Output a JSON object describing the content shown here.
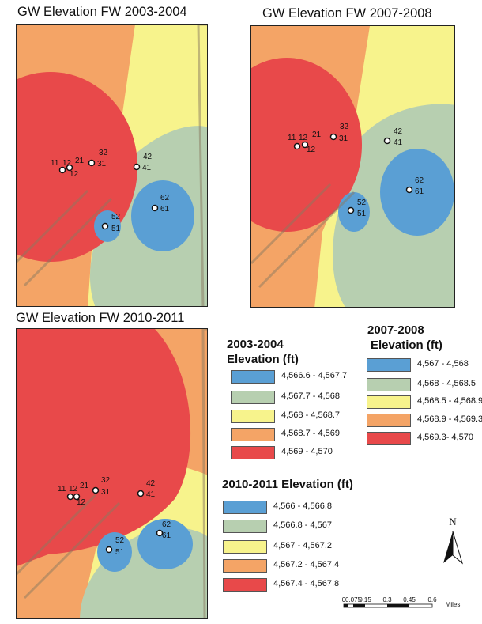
{
  "maps": [
    {
      "title": "GW Elevation FW 2003-2004"
    },
    {
      "title": "GW Elevation FW 2007-2008"
    },
    {
      "title": "GW Elevation FW 2010-2011"
    }
  ],
  "wells": {
    "group_a_top": [
      "11",
      "12",
      "21"
    ],
    "group_a_bottom": "12",
    "w32": "32",
    "w31": "31",
    "w42": "42",
    "w41": "41",
    "w62": "62",
    "w61": "61",
    "w52": "52",
    "w51": "51"
  },
  "legends": {
    "period_2003_2004": {
      "title_line1": "2003-2004",
      "title_line2": "Elevation (ft)",
      "entries": [
        {
          "label": "4,566.6 - 4,567.7",
          "color": "#5a9fd4"
        },
        {
          "label": "4,567.7 - 4,568",
          "color": "#b7cfb0"
        },
        {
          "label": "4,568 - 4,568.7",
          "color": "#f7f38c"
        },
        {
          "label": "4,568.7 - 4,569",
          "color": "#f4a466"
        },
        {
          "label": "4,569 - 4,570",
          "color": "#e8494a"
        }
      ]
    },
    "period_2007_2008": {
      "title_line1": "2007-2008",
      "title_line2": "Elevation (ft)",
      "entries": [
        {
          "label": "4,567 - 4,568",
          "color": "#5a9fd4"
        },
        {
          "label": "4,568 - 4,568.5",
          "color": "#b7cfb0"
        },
        {
          "label": "4,568.5 - 4,568.9",
          "color": "#f7f38c"
        },
        {
          "label": "4,568.9 - 4,569.3",
          "color": "#f4a466"
        },
        {
          "label": "4,569.3- 4,570",
          "color": "#e8494a"
        }
      ]
    },
    "period_2010_2011": {
      "title": "2010-2011 Elevation (ft)",
      "entries": [
        {
          "label": "4,566 - 4,566.8",
          "color": "#5a9fd4"
        },
        {
          "label": "4,566.8 - 4,567",
          "color": "#b7cfb0"
        },
        {
          "label": "4,567 - 4,567.2",
          "color": "#f7f38c"
        },
        {
          "label": "4,567.2 - 4,567.4",
          "color": "#f4a466"
        },
        {
          "label": "4,567.4 - 4,567.8",
          "color": "#e8494a"
        }
      ]
    }
  },
  "north_arrow": {
    "label": "N"
  },
  "scale_bar": {
    "ticks": [
      "0",
      "0.075",
      "0.15",
      "0.3",
      "0.45",
      "0.6"
    ],
    "units": "Miles"
  }
}
